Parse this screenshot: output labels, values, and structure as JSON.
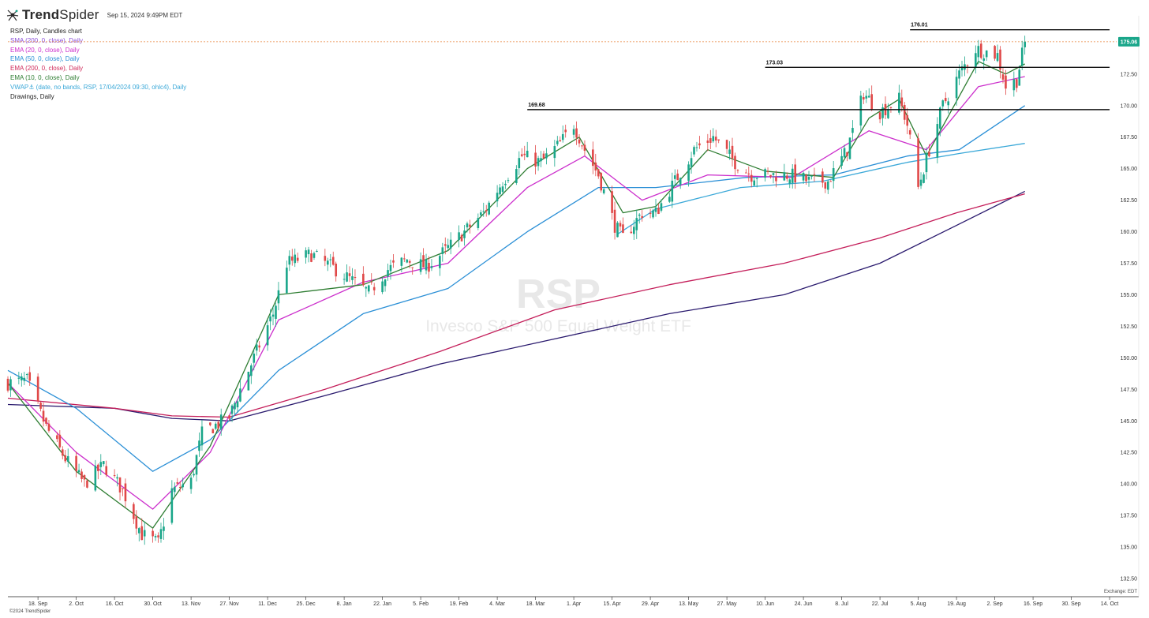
{
  "header": {
    "brand_bold": "Trend",
    "brand_rest": "Spider",
    "timestamp": "Sep 15, 2024 9:49PM EDT",
    "logo_icon": "spider-logo-icon"
  },
  "legend": [
    {
      "text": "RSP, Daily, Candles chart",
      "color": "#222222"
    },
    {
      "text": "SMA (200, 0, close), Daily",
      "color": "#8a4fd6"
    },
    {
      "text": "EMA (20, 0, close), Daily",
      "color": "#cc2fcc"
    },
    {
      "text": "EMA (50, 0, close), Daily",
      "color": "#2a8fd6"
    },
    {
      "text": "EMA (200, 0, close), Daily",
      "color": "#d02a5a"
    },
    {
      "text": "EMA (10, 0, close), Daily",
      "color": "#2e7d32"
    },
    {
      "text": "VWAP⚓ (date, no bands, RSP, 17/04/2024 09:30, ohlc4), Daily",
      "color": "#3aa8d8"
    },
    {
      "text": "Drawings, Daily",
      "color": "#222222"
    }
  ],
  "watermark": {
    "symbol": "RSP",
    "name": "Invesco S&P 500 Equal Weight ETF"
  },
  "footer": {
    "copyright": "©2024 TrendSpider",
    "exchange": "Exchange: EDT"
  },
  "chart_data": {
    "type": "candlestick",
    "symbol": "RSP",
    "interval": "Daily",
    "ylim": [
      132.5,
      177.5
    ],
    "y_ticks": [
      132.5,
      135.0,
      137.5,
      140.0,
      142.5,
      145.0,
      147.5,
      150.0,
      152.5,
      155.0,
      157.5,
      160.0,
      162.5,
      165.0,
      167.5,
      170.0,
      172.5
    ],
    "y_tick_labels": [
      "132.50",
      "135.00",
      "137.50",
      "140.00",
      "142.50",
      "145.00",
      "147.50",
      "150.00",
      "152.50",
      "155.00",
      "157.50",
      "160.00",
      "162.50",
      "165.00",
      "167.50",
      "170.00",
      "172.50"
    ],
    "x_ticks": [
      {
        "date": "2023-09-18",
        "label": "18. Sep"
      },
      {
        "date": "2023-10-02",
        "label": "2. Oct"
      },
      {
        "date": "2023-10-16",
        "label": "16. Oct"
      },
      {
        "date": "2023-10-30",
        "label": "30. Oct"
      },
      {
        "date": "2023-11-13",
        "label": "13. Nov"
      },
      {
        "date": "2023-11-27",
        "label": "27. Nov"
      },
      {
        "date": "2023-12-11",
        "label": "11. Dec"
      },
      {
        "date": "2023-12-25",
        "label": "25. Dec"
      },
      {
        "date": "2024-01-08",
        "label": "8. Jan"
      },
      {
        "date": "2024-01-22",
        "label": "22. Jan"
      },
      {
        "date": "2024-02-05",
        "label": "5. Feb"
      },
      {
        "date": "2024-02-19",
        "label": "19. Feb"
      },
      {
        "date": "2024-03-04",
        "label": "4. Mar"
      },
      {
        "date": "2024-03-18",
        "label": "18. Mar"
      },
      {
        "date": "2024-04-01",
        "label": "1. Apr"
      },
      {
        "date": "2024-04-15",
        "label": "15. Apr"
      },
      {
        "date": "2024-04-29",
        "label": "29. Apr"
      },
      {
        "date": "2024-05-13",
        "label": "13. May"
      },
      {
        "date": "2024-05-27",
        "label": "27. May"
      },
      {
        "date": "2024-06-10",
        "label": "10. Jun"
      },
      {
        "date": "2024-06-24",
        "label": "24. Jun"
      },
      {
        "date": "2024-07-08",
        "label": "8. Jul"
      },
      {
        "date": "2024-07-22",
        "label": "22. Jul"
      },
      {
        "date": "2024-08-05",
        "label": "5. Aug"
      },
      {
        "date": "2024-08-19",
        "label": "19. Aug"
      },
      {
        "date": "2024-09-02",
        "label": "2. Sep"
      },
      {
        "date": "2024-09-16",
        "label": "16. Sep"
      },
      {
        "date": "2024-09-30",
        "label": "30. Sep"
      },
      {
        "date": "2024-10-14",
        "label": "14. Oct"
      }
    ],
    "x_range": [
      "2023-09-07",
      "2024-10-16"
    ],
    "last_price": 175.06,
    "last_price_label": "175.06",
    "last_price_color": "#1aa68a",
    "up_color": "#1aa68a",
    "down_color": "#e04848",
    "horizontal_levels": [
      {
        "value": 176.01,
        "label": "176.01",
        "from": "2024-08-02",
        "to": "2024-10-14"
      },
      {
        "value": 173.03,
        "label": "173.03",
        "from": "2024-06-10",
        "to": "2024-10-14"
      },
      {
        "value": 169.68,
        "label": "169.68",
        "from": "2024-03-15",
        "to": "2024-10-14"
      }
    ],
    "close_path": [
      [
        "2023-09-07",
        148.0
      ],
      [
        "2023-09-14",
        148.2
      ],
      [
        "2023-09-21",
        144.5
      ],
      [
        "2023-09-28",
        142.0
      ],
      [
        "2023-10-05",
        140.0
      ],
      [
        "2023-10-12",
        141.5
      ],
      [
        "2023-10-19",
        139.5
      ],
      [
        "2023-10-26",
        136.0
      ],
      [
        "2023-11-01",
        135.3
      ],
      [
        "2023-11-06",
        139.5
      ],
      [
        "2023-11-13",
        140.2
      ],
      [
        "2023-11-17",
        144.0
      ],
      [
        "2023-11-27",
        145.3
      ],
      [
        "2023-12-01",
        147.5
      ],
      [
        "2023-12-08",
        151.0
      ],
      [
        "2023-12-13",
        153.5
      ],
      [
        "2023-12-18",
        157.5
      ],
      [
        "2023-12-27",
        158.2
      ],
      [
        "2024-01-05",
        157.0
      ],
      [
        "2024-01-17",
        155.2
      ],
      [
        "2024-01-24",
        157.0
      ],
      [
        "2024-01-31",
        157.8
      ],
      [
        "2024-02-07",
        157.2
      ],
      [
        "2024-02-14",
        158.5
      ],
      [
        "2024-02-21",
        160.0
      ],
      [
        "2024-02-28",
        161.5
      ],
      [
        "2024-03-06",
        164.0
      ],
      [
        "2024-03-13",
        166.0
      ],
      [
        "2024-03-20",
        165.5
      ],
      [
        "2024-03-27",
        167.0
      ],
      [
        "2024-04-01",
        168.5
      ],
      [
        "2024-04-05",
        166.5
      ],
      [
        "2024-04-10",
        164.5
      ],
      [
        "2024-04-16",
        160.5
      ],
      [
        "2024-04-19",
        159.5
      ],
      [
        "2024-04-26",
        161.5
      ],
      [
        "2024-05-01",
        161.5
      ],
      [
        "2024-05-08",
        164.0
      ],
      [
        "2024-05-15",
        166.5
      ],
      [
        "2024-05-22",
        167.5
      ],
      [
        "2024-05-30",
        165.5
      ],
      [
        "2024-06-05",
        164.5
      ],
      [
        "2024-06-12",
        164.5
      ],
      [
        "2024-06-19",
        164.5
      ],
      [
        "2024-06-26",
        164.0
      ],
      [
        "2024-07-03",
        164.0
      ],
      [
        "2024-07-10",
        166.5
      ],
      [
        "2024-07-16",
        171.0
      ],
      [
        "2024-07-22",
        169.5
      ],
      [
        "2024-07-29",
        170.5
      ],
      [
        "2024-08-01",
        168.5
      ],
      [
        "2024-08-05",
        163.5
      ],
      [
        "2024-08-09",
        166.5
      ],
      [
        "2024-08-14",
        170.0
      ],
      [
        "2024-08-20",
        172.5
      ],
      [
        "2024-08-26",
        174.5
      ],
      [
        "2024-09-03",
        174.0
      ],
      [
        "2024-09-06",
        171.5
      ],
      [
        "2024-09-10",
        172.0
      ],
      [
        "2024-09-13",
        175.06
      ]
    ],
    "series": [
      {
        "name": "SMA (200, 0, close), Daily",
        "color": "#2a1a6e",
        "values": [
          [
            "2023-09-07",
            146.3
          ],
          [
            "2023-10-16",
            146.0
          ],
          [
            "2023-11-06",
            145.2
          ],
          [
            "2023-11-27",
            145.0
          ],
          [
            "2024-01-01",
            147.0
          ],
          [
            "2024-02-12",
            149.5
          ],
          [
            "2024-03-25",
            151.5
          ],
          [
            "2024-05-06",
            153.5
          ],
          [
            "2024-06-17",
            155.0
          ],
          [
            "2024-07-22",
            157.5
          ],
          [
            "2024-08-19",
            160.5
          ],
          [
            "2024-09-13",
            163.2
          ]
        ]
      },
      {
        "name": "EMA (200, 0, close), Daily",
        "color": "#c41e5a",
        "values": [
          [
            "2023-09-07",
            146.8
          ],
          [
            "2023-10-16",
            146.0
          ],
          [
            "2023-11-06",
            145.4
          ],
          [
            "2023-11-27",
            145.3
          ],
          [
            "2024-01-01",
            147.5
          ],
          [
            "2024-02-12",
            150.5
          ],
          [
            "2024-03-25",
            153.8
          ],
          [
            "2024-05-06",
            155.8
          ],
          [
            "2024-06-17",
            157.5
          ],
          [
            "2024-07-22",
            159.5
          ],
          [
            "2024-08-19",
            161.5
          ],
          [
            "2024-09-13",
            163.0
          ]
        ]
      },
      {
        "name": "EMA (50, 0, close), Daily",
        "color": "#2a8fd6",
        "values": [
          [
            "2023-09-07",
            149.0
          ],
          [
            "2023-10-02",
            146.0
          ],
          [
            "2023-10-30",
            141.0
          ],
          [
            "2023-11-20",
            143.5
          ],
          [
            "2023-12-15",
            149.0
          ],
          [
            "2024-01-15",
            153.5
          ],
          [
            "2024-02-15",
            155.5
          ],
          [
            "2024-03-15",
            160.0
          ],
          [
            "2024-04-10",
            163.5
          ],
          [
            "2024-05-01",
            163.5
          ],
          [
            "2024-06-03",
            164.3
          ],
          [
            "2024-07-05",
            164.5
          ],
          [
            "2024-08-01",
            166.0
          ],
          [
            "2024-08-20",
            166.5
          ],
          [
            "2024-09-13",
            170.0
          ]
        ]
      },
      {
        "name": "EMA (20, 0, close), Daily",
        "color": "#cc2fcc",
        "values": [
          [
            "2023-09-07",
            148.0
          ],
          [
            "2023-10-02",
            142.5
          ],
          [
            "2023-10-30",
            138.0
          ],
          [
            "2023-11-20",
            142.5
          ],
          [
            "2023-12-15",
            153.0
          ],
          [
            "2024-01-15",
            156.0
          ],
          [
            "2024-02-15",
            157.5
          ],
          [
            "2024-03-15",
            163.5
          ],
          [
            "2024-04-05",
            166.0
          ],
          [
            "2024-04-26",
            162.5
          ],
          [
            "2024-05-20",
            164.5
          ],
          [
            "2024-06-20",
            164.3
          ],
          [
            "2024-07-18",
            168.0
          ],
          [
            "2024-08-08",
            166.5
          ],
          [
            "2024-08-27",
            171.5
          ],
          [
            "2024-09-13",
            172.3
          ]
        ]
      },
      {
        "name": "EMA (10, 0, close), Daily",
        "color": "#2e7d32",
        "values": [
          [
            "2023-09-07",
            148.0
          ],
          [
            "2023-10-02",
            141.0
          ],
          [
            "2023-10-30",
            136.5
          ],
          [
            "2023-11-20",
            143.0
          ],
          [
            "2023-12-15",
            155.0
          ],
          [
            "2024-01-15",
            155.8
          ],
          [
            "2024-02-15",
            158.5
          ],
          [
            "2024-03-15",
            165.0
          ],
          [
            "2024-04-03",
            167.5
          ],
          [
            "2024-04-19",
            161.5
          ],
          [
            "2024-05-01",
            162.0
          ],
          [
            "2024-05-20",
            166.5
          ],
          [
            "2024-06-10",
            164.8
          ],
          [
            "2024-07-05",
            164.3
          ],
          [
            "2024-07-18",
            169.0
          ],
          [
            "2024-07-29",
            170.5
          ],
          [
            "2024-08-08",
            166.0
          ],
          [
            "2024-08-27",
            173.5
          ],
          [
            "2024-09-06",
            172.5
          ],
          [
            "2024-09-13",
            173.3
          ]
        ]
      },
      {
        "name": "VWAP (date, no bands, RSP, 17/04/2024 09:30, ohlc4), Daily",
        "color": "#3aa8d8",
        "values": [
          [
            "2024-04-17",
            159.8
          ],
          [
            "2024-05-01",
            161.8
          ],
          [
            "2024-06-01",
            163.5
          ],
          [
            "2024-07-01",
            164.0
          ],
          [
            "2024-08-01",
            165.5
          ],
          [
            "2024-08-20",
            166.2
          ],
          [
            "2024-09-13",
            167.0
          ]
        ]
      }
    ]
  }
}
